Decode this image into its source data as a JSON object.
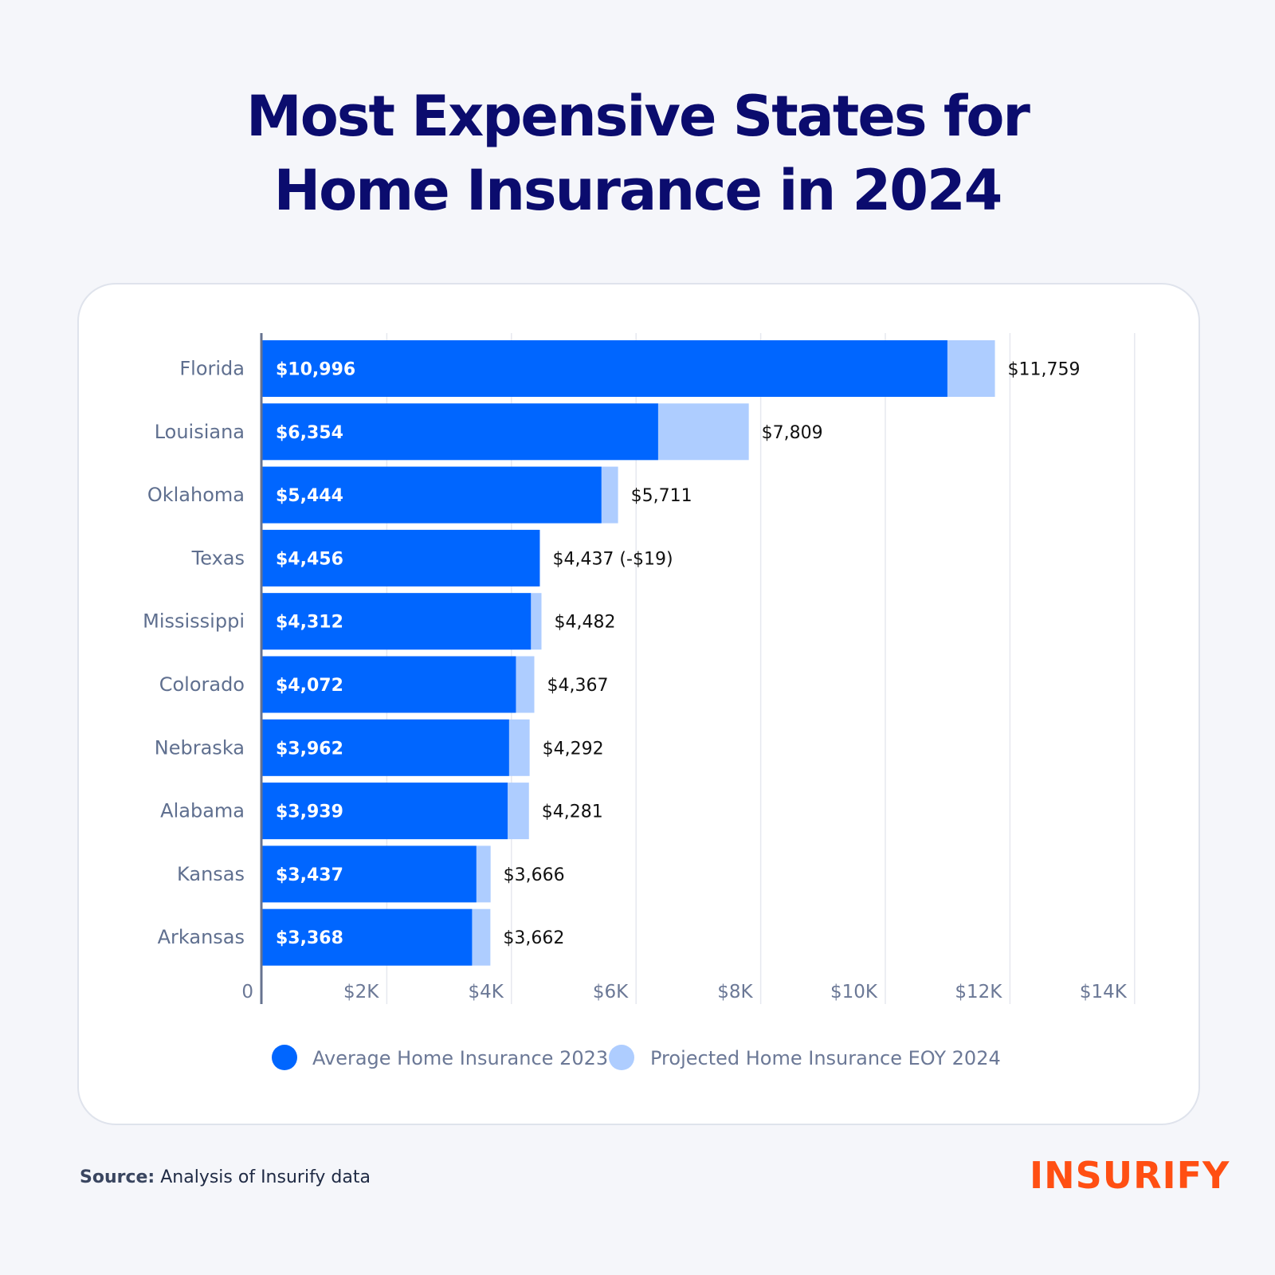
{
  "title_line1": "Most Expensive States for",
  "title_line2": "Home Insurance in 2024",
  "source_label": "Source:",
  "source_text": "Analysis of Insurify data",
  "logo": "INSURIFY",
  "colors": {
    "avg_2023": "#0066ff",
    "projected_2024": "#aecdff",
    "title": "#0b0c6e",
    "logo": "#ff4f13"
  },
  "chart_data": {
    "type": "bar",
    "orientation": "horizontal",
    "categories": [
      "Florida",
      "Louisiana",
      "Oklahoma",
      "Texas",
      "Mississippi",
      "Colorado",
      "Nebraska",
      "Alabama",
      "Kansas",
      "Arkansas"
    ],
    "series": [
      {
        "name": "Average Home Insurance 2023",
        "values": [
          10996,
          6354,
          5444,
          4456,
          4312,
          4072,
          3962,
          3939,
          3437,
          3368
        ],
        "labels": [
          "$10,996",
          "$6,354",
          "$5,444",
          "$4,456",
          "$4,312",
          "$4,072",
          "$3,962",
          "$3,939",
          "$3,437",
          "$3,368"
        ]
      },
      {
        "name": "Projected Home Insurance EOY 2024",
        "values": [
          11759,
          7809,
          5711,
          4437,
          4482,
          4367,
          4292,
          4281,
          3666,
          3662
        ],
        "labels": [
          "$11,759",
          "$7,809",
          "$5,711",
          "$4,437 (-$19)",
          "$4,482",
          "$4,367",
          "$4,292",
          "$4,281",
          "$3,666",
          "$3,662"
        ]
      }
    ],
    "xlim": [
      0,
      14000
    ],
    "xticks": [
      0,
      2000,
      4000,
      6000,
      8000,
      10000,
      12000,
      14000
    ],
    "xtick_labels": [
      "0",
      "$2K",
      "$4K",
      "$6K",
      "$8K",
      "$10K",
      "$12K",
      "$14K"
    ],
    "grid": true,
    "legend_position": "bottom"
  }
}
